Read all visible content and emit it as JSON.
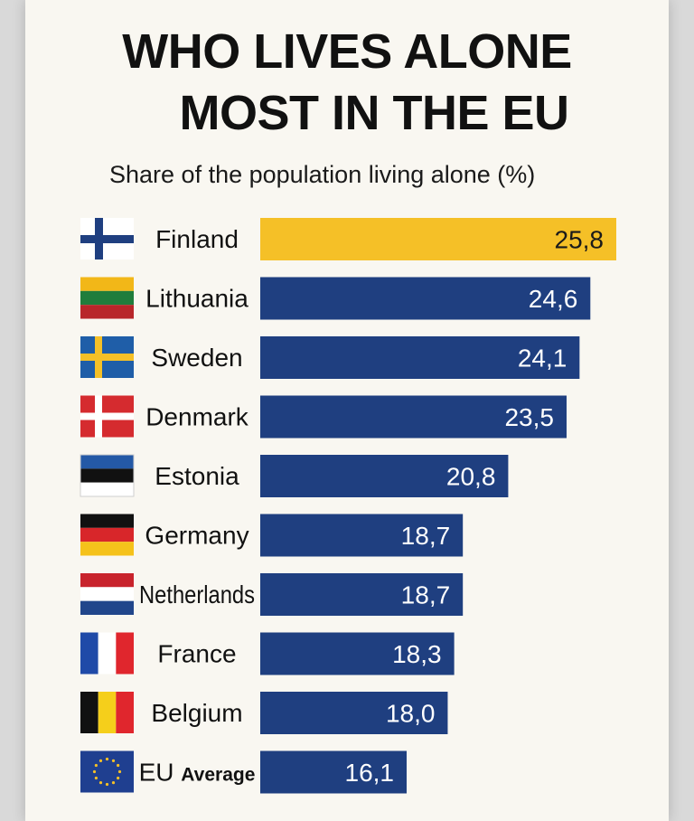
{
  "title_line1": "WHO LIVES ALONE",
  "title_line2": "MOST IN THE EU",
  "subtitle": "Share of the population living alone (%)",
  "chart_data": {
    "type": "bar",
    "orientation": "horizontal",
    "title": "WHO LIVES ALONE MOST IN THE EU",
    "subtitle": "Share of the population living alone (%)",
    "categories": [
      "Finland",
      "Lithuania",
      "Sweden",
      "Denmark",
      "Estonia",
      "Germany",
      "Netherlands",
      "France",
      "Belgium",
      "EU Average"
    ],
    "values": [
      25.8,
      24.6,
      24.1,
      23.5,
      20.8,
      18.7,
      18.7,
      18.3,
      18.0,
      16.1
    ],
    "value_labels": [
      "25,8",
      "24,6",
      "24,1",
      "23,5",
      "20,8",
      "18,7",
      "18,7",
      "18,3",
      "18,0",
      "16,1"
    ],
    "highlight_index": 0,
    "grid": false,
    "legend": "none"
  },
  "colors": {
    "bar": "#1f3f80",
    "highlight": "#f5c027",
    "background": "#f9f7f1"
  },
  "flags": [
    "finland-flag",
    "lithuania-flag",
    "sweden-flag",
    "denmark-flag",
    "estonia-flag",
    "germany-flag",
    "netherlands-flag",
    "france-flag",
    "belgium-flag",
    "eu-flag"
  ]
}
